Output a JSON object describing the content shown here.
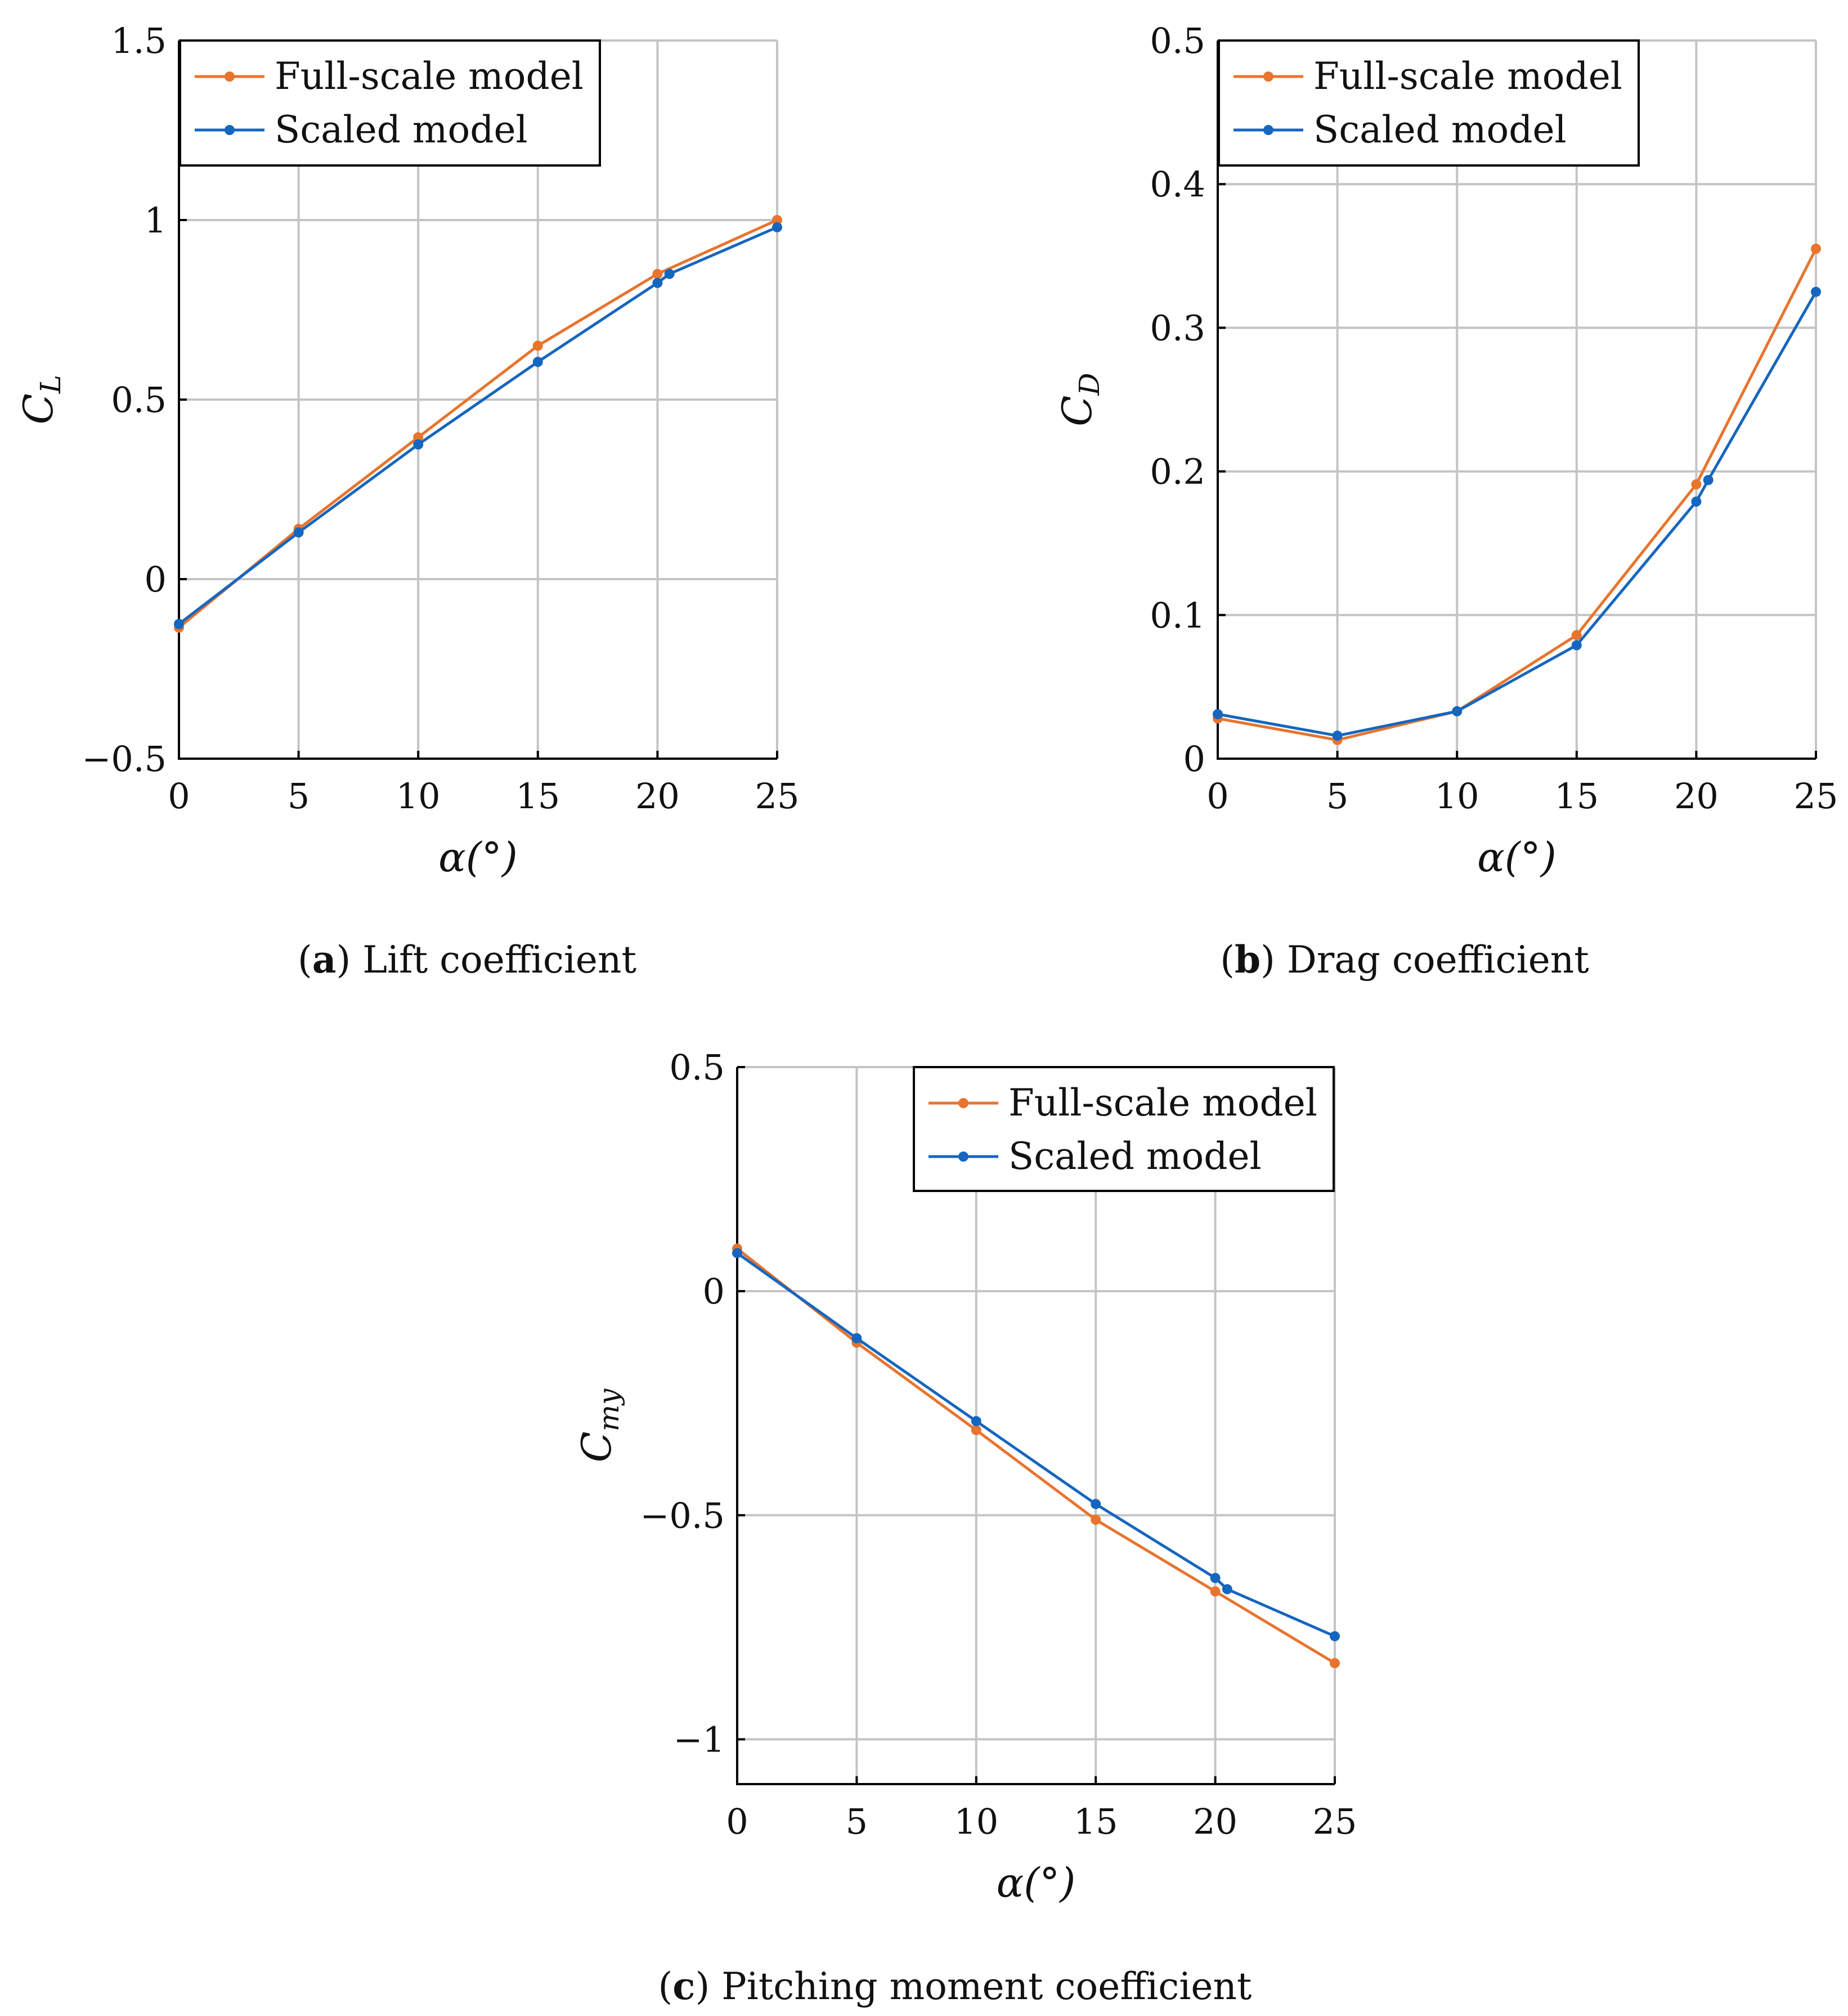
{
  "series_colors": {
    "Full-scale model": "#e8742d",
    "Scaled model": "#1566bf"
  },
  "chart_data": [
    {
      "type": "line",
      "panel_letter": "a",
      "caption": "Lift coefficient",
      "xlabel": "α(°)",
      "ylabel": "C",
      "ylabel_sub": "L",
      "xlim": [
        0,
        25
      ],
      "ylim": [
        -0.5,
        1.5
      ],
      "xticks": [
        0,
        5,
        10,
        15,
        20,
        25
      ],
      "yticks": [
        -0.5,
        0,
        0.5,
        1,
        1.5
      ],
      "xtick_labels": [
        "0",
        "5",
        "10",
        "15",
        "20",
        "25"
      ],
      "ytick_labels": [
        "−0.5",
        "0",
        "0.5",
        "1",
        "1.5"
      ],
      "grid": true,
      "legend_position": "top-left",
      "series": [
        {
          "name": "Full-scale model",
          "x": [
            0,
            5,
            10,
            15,
            20,
            25
          ],
          "y": [
            -0.135,
            0.14,
            0.395,
            0.65,
            0.85,
            1.0
          ]
        },
        {
          "name": "Scaled model",
          "x": [
            0,
            5,
            10,
            15,
            20,
            20.5,
            25
          ],
          "y": [
            -0.125,
            0.13,
            0.375,
            0.605,
            0.825,
            0.85,
            0.98
          ]
        }
      ]
    },
    {
      "type": "line",
      "panel_letter": "b",
      "caption": "Drag coefficient",
      "xlabel": "α(°)",
      "ylabel": "C",
      "ylabel_sub": "D",
      "xlim": [
        0,
        25
      ],
      "ylim": [
        0,
        0.5
      ],
      "xticks": [
        0,
        5,
        10,
        15,
        20,
        25
      ],
      "yticks": [
        0,
        0.1,
        0.2,
        0.3,
        0.4,
        0.5
      ],
      "xtick_labels": [
        "0",
        "5",
        "10",
        "15",
        "20",
        "25"
      ],
      "ytick_labels": [
        "0",
        "0.1",
        "0.2",
        "0.3",
        "0.4",
        "0.5"
      ],
      "grid": true,
      "legend_position": "top-left",
      "series": [
        {
          "name": "Full-scale model",
          "x": [
            0,
            5,
            10,
            15,
            20,
            25
          ],
          "y": [
            0.028,
            0.013,
            0.033,
            0.086,
            0.191,
            0.355
          ]
        },
        {
          "name": "Scaled model",
          "x": [
            0,
            5,
            10,
            15,
            20,
            20.5,
            25
          ],
          "y": [
            0.031,
            0.016,
            0.033,
            0.079,
            0.179,
            0.194,
            0.325
          ]
        }
      ]
    },
    {
      "type": "line",
      "panel_letter": "c",
      "caption": "Pitching moment coefficient",
      "xlabel": "α(°)",
      "ylabel": "C",
      "ylabel_sub": "my",
      "xlim": [
        0,
        25
      ],
      "ylim": [
        -1.1,
        0.5
      ],
      "xticks": [
        0,
        5,
        10,
        15,
        20,
        25
      ],
      "yticks": [
        -1,
        -0.5,
        0,
        0.5
      ],
      "xtick_labels": [
        "0",
        "5",
        "10",
        "15",
        "20",
        "25"
      ],
      "ytick_labels": [
        "−1",
        "−0.5",
        "0",
        "0.5"
      ],
      "grid": true,
      "legend_position": "top-right",
      "series": [
        {
          "name": "Full-scale model",
          "x": [
            0,
            5,
            10,
            15,
            20,
            25
          ],
          "y": [
            0.095,
            -0.115,
            -0.31,
            -0.51,
            -0.67,
            -0.83
          ]
        },
        {
          "name": "Scaled model",
          "x": [
            0,
            5,
            10,
            15,
            20,
            20.5,
            25
          ],
          "y": [
            0.085,
            -0.105,
            -0.29,
            -0.475,
            -0.64,
            -0.665,
            -0.77
          ]
        }
      ]
    }
  ]
}
